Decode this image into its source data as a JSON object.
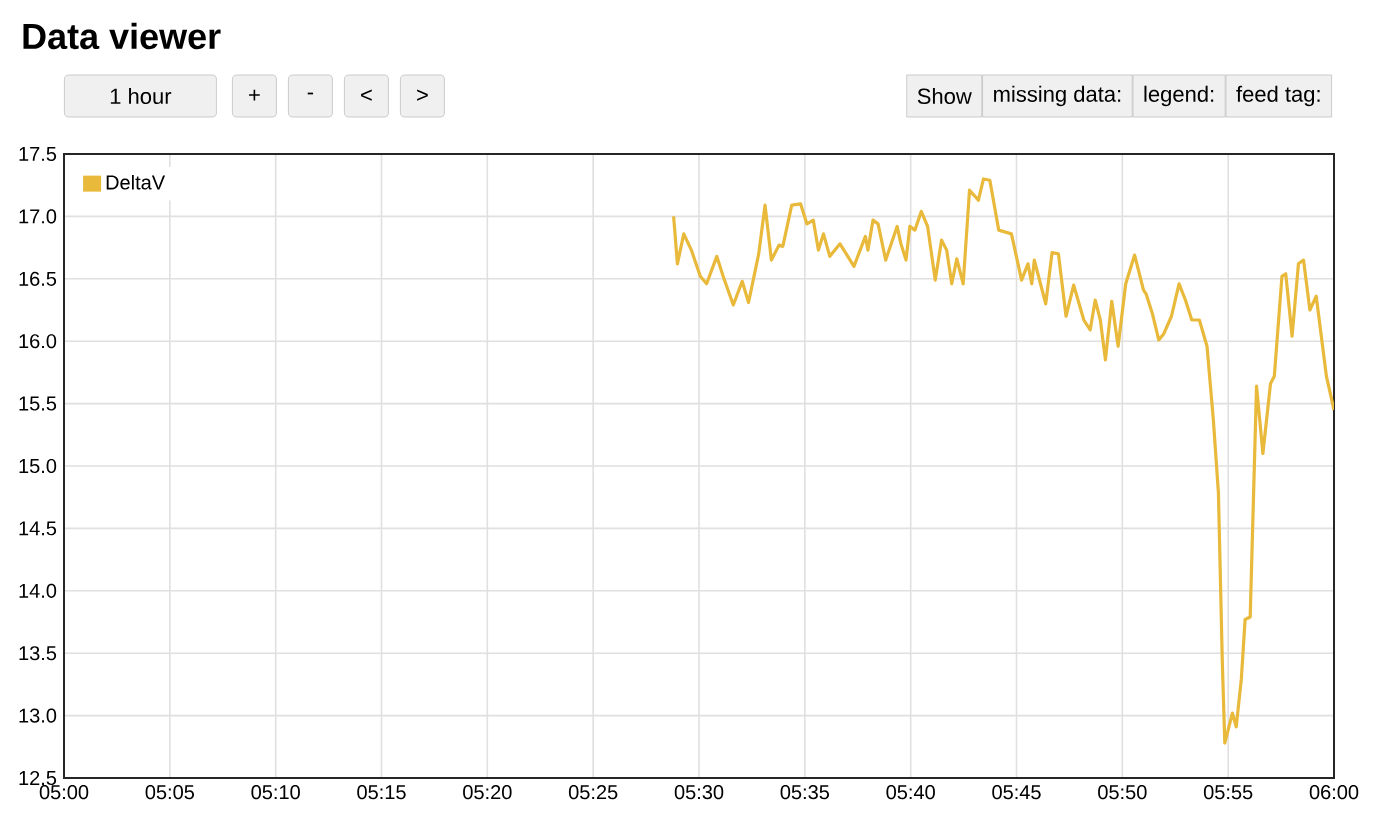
{
  "chart_data": {
    "type": "line",
    "title": "Data viewer",
    "annotations": [
      "1 hour",
      "+",
      "-",
      "<",
      ">",
      "Show",
      "missing data:",
      "legend:",
      "feed tag:"
    ],
    "xlim": [
      5,
      6
    ],
    "ylim": [
      12.5,
      17.5
    ],
    "xticks": [
      {
        "value": 5,
        "label": "05:00"
      },
      {
        "value": 5.083333,
        "label": "05:05"
      },
      {
        "value": 5.166667,
        "label": "05:10"
      },
      {
        "value": 5.25,
        "label": "05:15"
      },
      {
        "value": 5.333333,
        "label": "05:20"
      },
      {
        "value": 5.416667,
        "label": "05:25"
      },
      {
        "value": 5.5,
        "label": "05:30"
      },
      {
        "value": 5.583333,
        "label": "05:35"
      },
      {
        "value": 5.666667,
        "label": "05:40"
      },
      {
        "value": 5.75,
        "label": "05:45"
      },
      {
        "value": 5.833333,
        "label": "05:50"
      },
      {
        "value": 5.916667,
        "label": "05:55"
      },
      {
        "value": 6,
        "label": "06:00"
      }
    ],
    "yticks": [
      {
        "value": 12.5,
        "label": "12.5"
      },
      {
        "value": 13,
        "label": "13.0"
      },
      {
        "value": 13.5,
        "label": "13.5"
      },
      {
        "value": 14,
        "label": "14.0"
      },
      {
        "value": 14.5,
        "label": "14.5"
      },
      {
        "value": 15,
        "label": "15.0"
      },
      {
        "value": 15.5,
        "label": "15.5"
      },
      {
        "value": 16,
        "label": "16.0"
      },
      {
        "value": 16.5,
        "label": "16.5"
      },
      {
        "value": 17,
        "label": "17.0"
      },
      {
        "value": 17.5,
        "label": "17.5"
      }
    ],
    "grid": true,
    "legend": "top left",
    "marker": "none",
    "line_style": "solid",
    "series": [
      {
        "name": "DeltaV",
        "color": "#e8b93a",
        "x": [
          5.48,
          5.483,
          5.488,
          5.494,
          5.501,
          5.506,
          5.514,
          5.519,
          5.527,
          5.534,
          5.539,
          5.547,
          5.552,
          5.557,
          5.563,
          5.566,
          5.573,
          5.58,
          5.585,
          5.59,
          5.594,
          5.598,
          5.603,
          5.611,
          5.622,
          5.631,
          5.633,
          5.637,
          5.641,
          5.647,
          5.656,
          5.659,
          5.663,
          5.666,
          5.67,
          5.675,
          5.68,
          5.686,
          5.691,
          5.695,
          5.699,
          5.703,
          5.708,
          5.713,
          5.72,
          5.724,
          5.729,
          5.736,
          5.746,
          5.754,
          5.759,
          5.762,
          5.764,
          5.773,
          5.778,
          5.783,
          5.789,
          5.795,
          5.803,
          5.808,
          5.812,
          5.816,
          5.82,
          5.825,
          5.83,
          5.836,
          5.843,
          5.85,
          5.852,
          5.857,
          5.862,
          5.866,
          5.872,
          5.878,
          5.883,
          5.888,
          5.894,
          5.9,
          5.905,
          5.909,
          5.912,
          5.914,
          5.92,
          5.923,
          5.927,
          5.93,
          5.934,
          5.939,
          5.944,
          5.95,
          5.953,
          5.959,
          5.962,
          5.967,
          5.972,
          5.976,
          5.981,
          5.986,
          5.994,
          6.0
        ],
        "values": [
          17.0,
          16.62,
          16.86,
          16.73,
          16.52,
          16.46,
          16.68,
          16.52,
          16.29,
          16.48,
          16.31,
          16.7,
          17.09,
          16.65,
          16.77,
          16.76,
          17.09,
          17.1,
          16.94,
          16.97,
          16.73,
          16.86,
          16.68,
          16.78,
          16.6,
          16.84,
          16.73,
          16.97,
          16.94,
          16.65,
          16.92,
          16.78,
          16.65,
          16.92,
          16.89,
          17.04,
          16.92,
          16.49,
          16.81,
          16.73,
          16.46,
          16.66,
          16.46,
          17.21,
          17.13,
          17.3,
          17.29,
          16.89,
          16.86,
          16.49,
          16.62,
          16.46,
          16.65,
          16.3,
          16.71,
          16.7,
          16.2,
          16.45,
          16.17,
          16.09,
          16.33,
          16.17,
          15.85,
          16.32,
          15.96,
          16.46,
          16.69,
          16.41,
          16.38,
          16.22,
          16.01,
          16.06,
          16.2,
          16.46,
          16.33,
          16.17,
          16.17,
          15.96,
          15.37,
          14.78,
          13.45,
          12.78,
          13.02,
          12.91,
          13.29,
          13.77,
          13.79,
          15.64,
          15.1,
          15.66,
          15.72,
          16.52,
          16.54,
          16.04,
          16.62,
          16.65,
          16.25,
          16.36,
          15.72,
          15.45
        ]
      }
    ]
  }
}
